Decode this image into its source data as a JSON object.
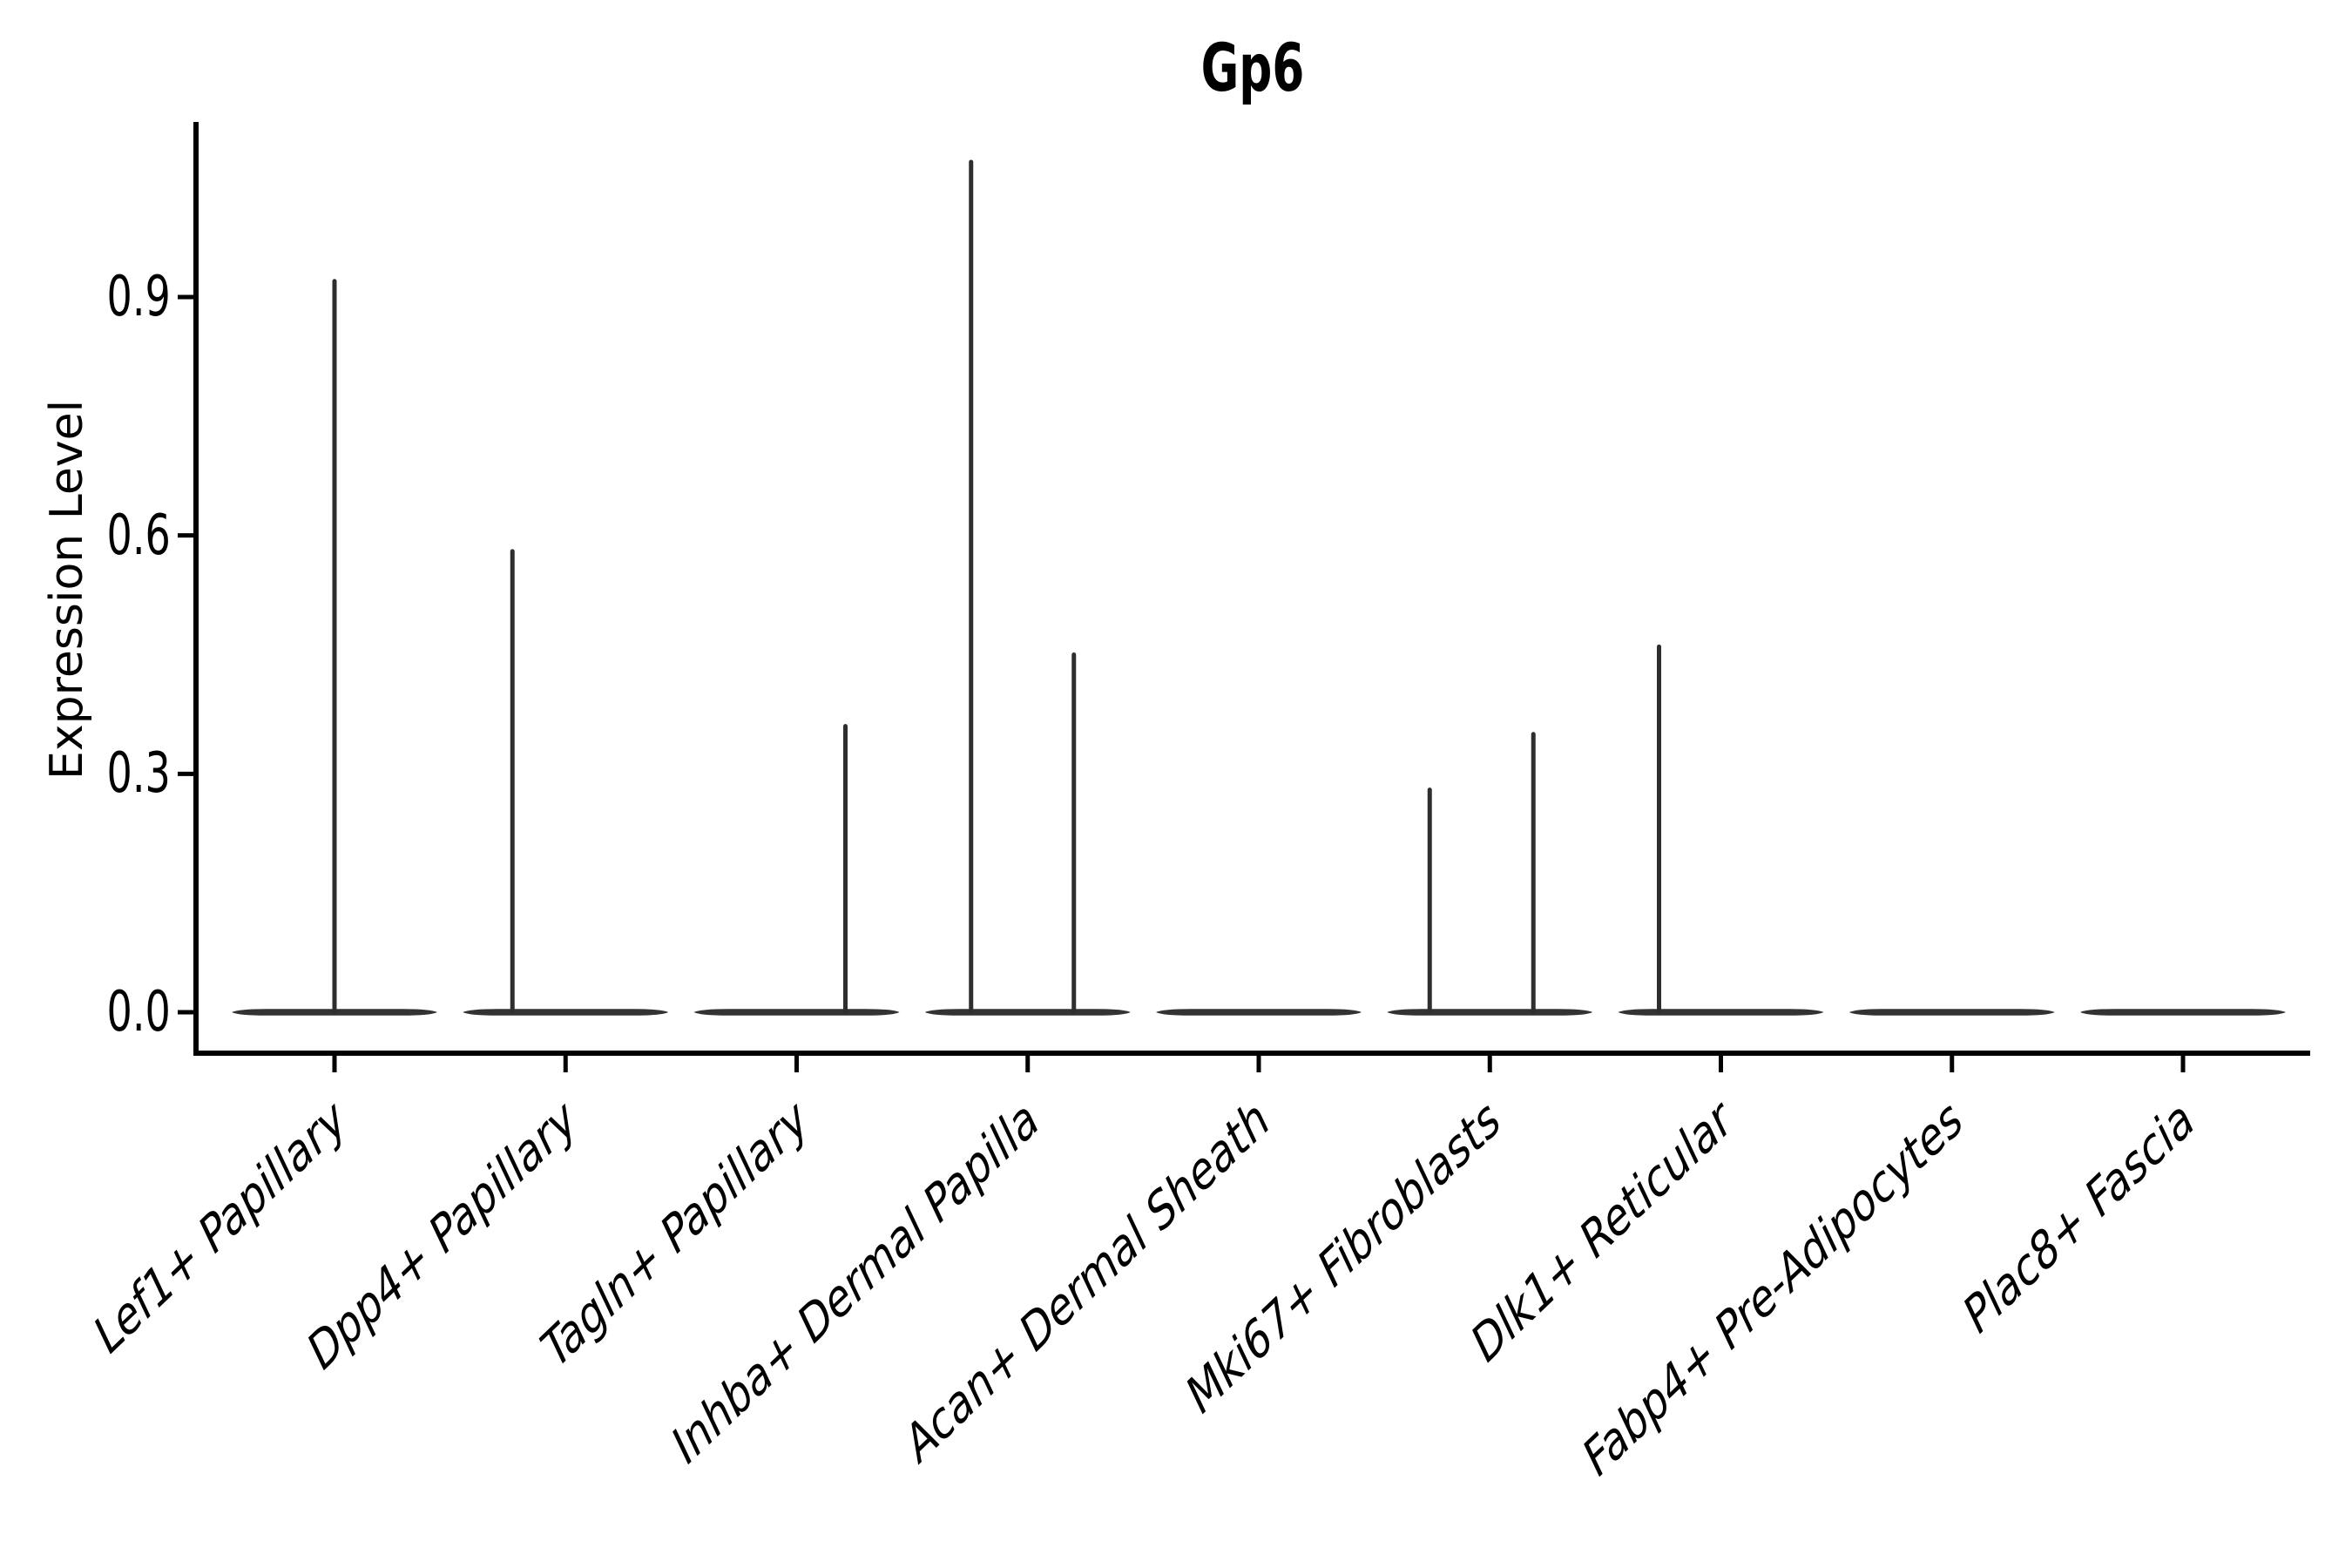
{
  "title": "Gp6",
  "ylabel": "Expression Level",
  "chart_data": {
    "type": "violin",
    "title": "Gp6",
    "ylabel": "Expression Level",
    "xlabel": "",
    "ylim": [
      0,
      1.12
    ],
    "ytick_values": [
      0.0,
      0.3,
      0.6,
      0.9
    ],
    "ytick_labels": [
      "0.0",
      "0.3",
      "0.6",
      "0.9"
    ],
    "grid": false,
    "legend": "none",
    "x_labels_rotated": true,
    "categories": [
      "Lef1+ Papillary",
      "Dpp4+ Papillary",
      "Tagln+ Papillary",
      "Inhba+ Dermal Papilla",
      "Acan+ Dermal Sheath",
      "Mki67+ Fibroblasts",
      "Dlk1+ Reticular",
      "Fabp4+ Pre-Adipocytes",
      "Plac8+ Fascia"
    ],
    "series": [
      {
        "name": "Lef1+ Papillary",
        "base_value": 0.0,
        "spikes": [
          {
            "value": 0.92,
            "dx": 0
          }
        ]
      },
      {
        "name": "Dpp4+ Papillary",
        "base_value": 0.0,
        "spikes": [
          {
            "value": 0.58,
            "dx": -61
          }
        ]
      },
      {
        "name": "Tagln+ Papillary",
        "base_value": 0.0,
        "spikes": [
          {
            "value": 0.36,
            "dx": 56
          }
        ]
      },
      {
        "name": "Inhba+ Dermal Papilla",
        "base_value": 0.0,
        "spikes": [
          {
            "value": 1.07,
            "dx": -65
          },
          {
            "value": 0.45,
            "dx": 53
          }
        ]
      },
      {
        "name": "Acan+ Dermal Sheath",
        "base_value": 0.0,
        "spikes": []
      },
      {
        "name": "Mki67+ Fibroblasts",
        "base_value": 0.0,
        "spikes": [
          {
            "value": 0.28,
            "dx": -69
          },
          {
            "value": 0.35,
            "dx": 50
          }
        ]
      },
      {
        "name": "Dlk1+ Reticular",
        "base_value": 0.0,
        "spikes": [
          {
            "value": 0.46,
            "dx": -71
          }
        ]
      },
      {
        "name": "Fabp4+ Pre-Adipocytes",
        "base_value": 0.0,
        "spikes": []
      },
      {
        "name": "Plac8+ Fascia",
        "base_value": 0.0,
        "spikes": []
      }
    ],
    "colors": {
      "violin": "#333333",
      "spike": "#2e2e2e",
      "axis": "#000000",
      "text": "#000000",
      "background": "#ffffff"
    }
  }
}
